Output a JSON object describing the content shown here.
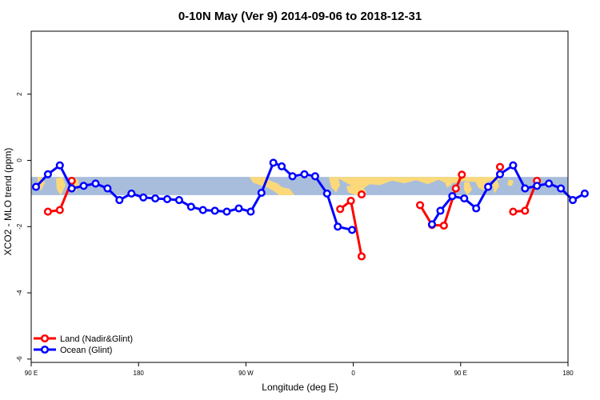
{
  "chart_data": {
    "type": "line",
    "title": "0-10N May (Ver 9)   2014-09-06 to 2018-12-31",
    "xlabel": "Longitude (deg E)",
    "ylabel": "XCO2 - MLO trend (ppm)",
    "x_ticks": [
      {
        "lon": 90,
        "label": "90 E"
      },
      {
        "lon": 180,
        "label": "180"
      },
      {
        "lon": 270,
        "label": "90 W"
      },
      {
        "lon": 360,
        "label": "0"
      },
      {
        "lon": 450,
        "label": "90 E"
      },
      {
        "lon": 540,
        "label": "180"
      }
    ],
    "xlim": [
      90,
      540
    ],
    "y_ticks": [
      -6,
      -4,
      -2,
      0,
      2
    ],
    "ylim": [
      -6.1,
      3.9
    ],
    "grid": false,
    "legend_position": "bottom-left",
    "background_band": {
      "y_low": -1.05,
      "y_high": -0.5,
      "ocean_color": "#a8bddb",
      "land_color": "#fbd97a"
    },
    "series": [
      {
        "name": "Land (Nadir&Glint)",
        "color": "#ff0000",
        "segments": [
          [
            [
              104,
              -1.55
            ],
            [
              114,
              -1.5
            ],
            [
              124,
              -0.62
            ]
          ],
          [
            [
              349,
              -1.47
            ],
            [
              358,
              -1.22
            ],
            [
              367,
              -2.9
            ]
          ],
          [
            [
              416,
              -1.35
            ],
            [
              426,
              -1.95
            ],
            [
              436,
              -1.97
            ],
            [
              446,
              -0.85
            ],
            [
              451,
              -0.43
            ]
          ],
          [
            [
              367,
              -1.03
            ]
          ],
          [
            [
              483,
              -0.2
            ]
          ],
          [
            [
              494,
              -1.55
            ],
            [
              504,
              -1.52
            ],
            [
              514,
              -0.62
            ]
          ]
        ]
      },
      {
        "name": "Ocean (Glint)",
        "color": "#0000ff",
        "segments": [
          [
            [
              94,
              -0.8
            ],
            [
              104,
              -0.42
            ],
            [
              114,
              -0.15
            ],
            [
              124,
              -0.85
            ],
            [
              134,
              -0.77
            ],
            [
              144,
              -0.7
            ],
            [
              154,
              -0.85
            ],
            [
              164,
              -1.2
            ],
            [
              174,
              -1.0
            ],
            [
              184,
              -1.12
            ],
            [
              194,
              -1.15
            ],
            [
              204,
              -1.17
            ],
            [
              214,
              -1.2
            ],
            [
              224,
              -1.4
            ],
            [
              234,
              -1.5
            ],
            [
              244,
              -1.52
            ],
            [
              254,
              -1.55
            ],
            [
              264,
              -1.45
            ],
            [
              274,
              -1.55
            ],
            [
              283,
              -0.98
            ],
            [
              293,
              -0.07
            ],
            [
              300,
              -0.18
            ],
            [
              309,
              -0.48
            ],
            [
              319,
              -0.42
            ],
            [
              328,
              -0.48
            ],
            [
              338,
              -1.0
            ],
            [
              347,
              -2.0
            ],
            [
              359,
              -2.1
            ]
          ],
          [
            [
              426,
              -1.93
            ],
            [
              433,
              -1.52
            ],
            [
              443,
              -1.08
            ],
            [
              453,
              -1.15
            ],
            [
              463,
              -1.45
            ],
            [
              473,
              -0.8
            ],
            [
              483,
              -0.42
            ],
            [
              494,
              -0.15
            ],
            [
              504,
              -0.85
            ],
            [
              514,
              -0.77
            ],
            [
              524,
              -0.7
            ],
            [
              534,
              -0.85
            ],
            [
              544,
              -1.2
            ],
            [
              554,
              -1.0
            ]
          ]
        ]
      }
    ]
  }
}
